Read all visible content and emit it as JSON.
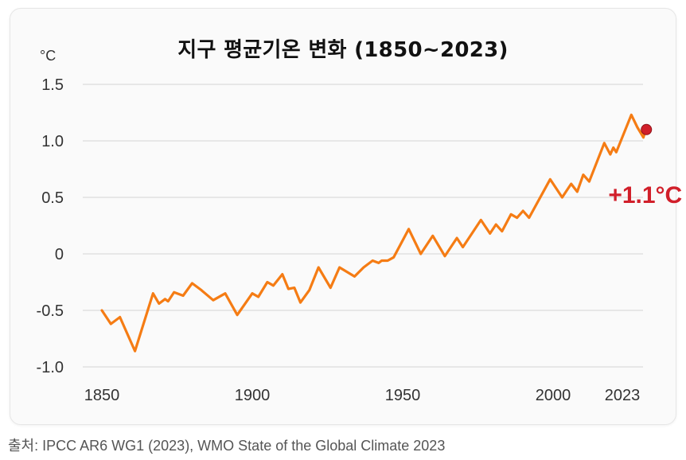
{
  "chart_data": {
    "type": "line",
    "title": "지구 평균기온 변화 (1850~2023)",
    "y_unit": "°C",
    "xlabel": "",
    "ylabel": "",
    "xlim": [
      1850,
      2023
    ],
    "ylim": [
      -1.0,
      1.5
    ],
    "x_ticks": [
      1850,
      1900,
      1950,
      2000,
      2023
    ],
    "y_ticks": [
      {
        "value": 1.5,
        "label": "1.5"
      },
      {
        "value": 1.0,
        "label": "1.0"
      },
      {
        "value": 0.5,
        "label": "0.5"
      },
      {
        "value": 0,
        "label": "0"
      },
      {
        "value": -0.5,
        "label": "-0.5"
      },
      {
        "value": -1.0,
        "label": "-1.0"
      }
    ],
    "grid": "horizontal",
    "series": [
      {
        "color": "#f57c14",
        "points": [
          [
            1850,
            -0.5
          ],
          [
            1853,
            -0.62
          ],
          [
            1856,
            -0.56
          ],
          [
            1861,
            -0.86
          ],
          [
            1867,
            -0.35
          ],
          [
            1869,
            -0.44
          ],
          [
            1871,
            -0.4
          ],
          [
            1872,
            -0.42
          ],
          [
            1874,
            -0.34
          ],
          [
            1877,
            -0.37
          ],
          [
            1880,
            -0.26
          ],
          [
            1883,
            -0.32
          ],
          [
            1887,
            -0.41
          ],
          [
            1891,
            -0.35
          ],
          [
            1895,
            -0.54
          ],
          [
            1900,
            -0.35
          ],
          [
            1902,
            -0.38
          ],
          [
            1905,
            -0.25
          ],
          [
            1907,
            -0.28
          ],
          [
            1910,
            -0.18
          ],
          [
            1912,
            -0.31
          ],
          [
            1914,
            -0.3
          ],
          [
            1916,
            -0.43
          ],
          [
            1919,
            -0.32
          ],
          [
            1922,
            -0.12
          ],
          [
            1926,
            -0.3
          ],
          [
            1929,
            -0.12
          ],
          [
            1934,
            -0.2
          ],
          [
            1937,
            -0.12
          ],
          [
            1940,
            -0.06
          ],
          [
            1942,
            -0.08
          ],
          [
            1943,
            -0.06
          ],
          [
            1945,
            -0.06
          ],
          [
            1947,
            -0.03
          ],
          [
            1952,
            0.22
          ],
          [
            1956,
            0.0
          ],
          [
            1960,
            0.16
          ],
          [
            1964,
            -0.02
          ],
          [
            1968,
            0.14
          ],
          [
            1970,
            0.06
          ],
          [
            1972,
            0.14
          ],
          [
            1976,
            0.3
          ],
          [
            1979,
            0.18
          ],
          [
            1981,
            0.26
          ],
          [
            1983,
            0.2
          ],
          [
            1986,
            0.35
          ],
          [
            1988,
            0.32
          ],
          [
            1990,
            0.38
          ],
          [
            1992,
            0.32
          ],
          [
            1999,
            0.66
          ],
          [
            2003,
            0.5
          ],
          [
            2006,
            0.62
          ],
          [
            2008,
            0.55
          ],
          [
            2010,
            0.7
          ],
          [
            2012,
            0.64
          ],
          [
            2017,
            0.98
          ],
          [
            2019,
            0.88
          ],
          [
            2020,
            0.94
          ],
          [
            2021,
            0.9
          ],
          [
            2026,
            1.23
          ],
          [
            2028,
            1.12
          ],
          [
            2030,
            1.03
          ],
          [
            2031,
            1.12
          ]
        ]
      }
    ],
    "highlight_point": {
      "x": 2031,
      "y": 1.1,
      "color": "#d11f2a"
    },
    "annotation": {
      "text": "+1.1°C",
      "x": 2017,
      "y": 0.55
    }
  },
  "source_note": "출처: IPCC AR6 WG1 (2023), WMO State of the Global Climate 2023"
}
